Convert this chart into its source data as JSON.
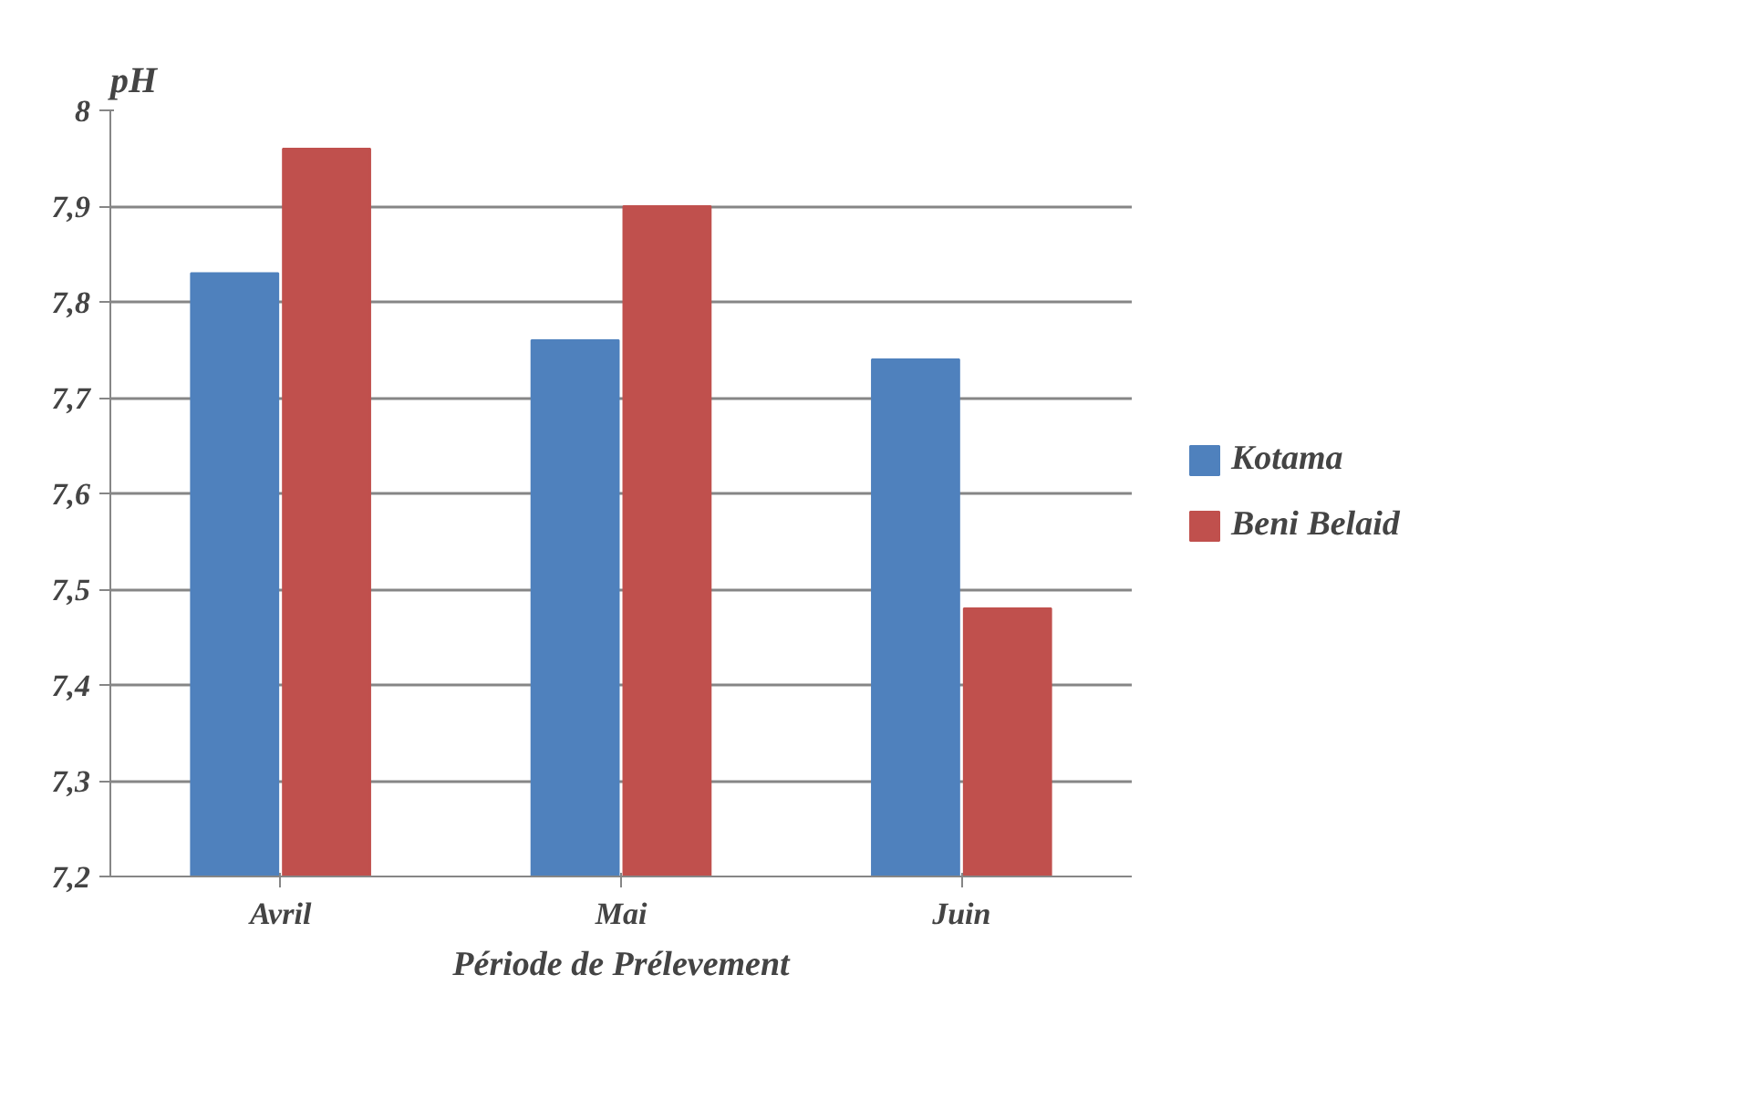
{
  "chart_data": {
    "type": "bar",
    "ylabel": "pH",
    "xlabel": "Période de Prélevement",
    "categories": [
      "Avril",
      "Mai",
      "Juin"
    ],
    "series": [
      {
        "name": "Kotama",
        "color": "#4f81bd",
        "values": [
          7.83,
          7.76,
          7.74
        ]
      },
      {
        "name": "Beni Belaid",
        "color": "#c0504d",
        "values": [
          7.96,
          7.9,
          7.48
        ]
      }
    ],
    "ylim": [
      7.2,
      8
    ],
    "yticks": [
      {
        "value": 7.2,
        "label": "7,2"
      },
      {
        "value": 7.3,
        "label": "7,3"
      },
      {
        "value": 7.4,
        "label": "7,4"
      },
      {
        "value": 7.5,
        "label": "7,5"
      },
      {
        "value": 7.6,
        "label": "7,6"
      },
      {
        "value": 7.7,
        "label": "7,7"
      },
      {
        "value": 7.8,
        "label": "7,8"
      },
      {
        "value": 7.9,
        "label": "7,9"
      },
      8
    ],
    "grid": "y",
    "legend": "right"
  }
}
